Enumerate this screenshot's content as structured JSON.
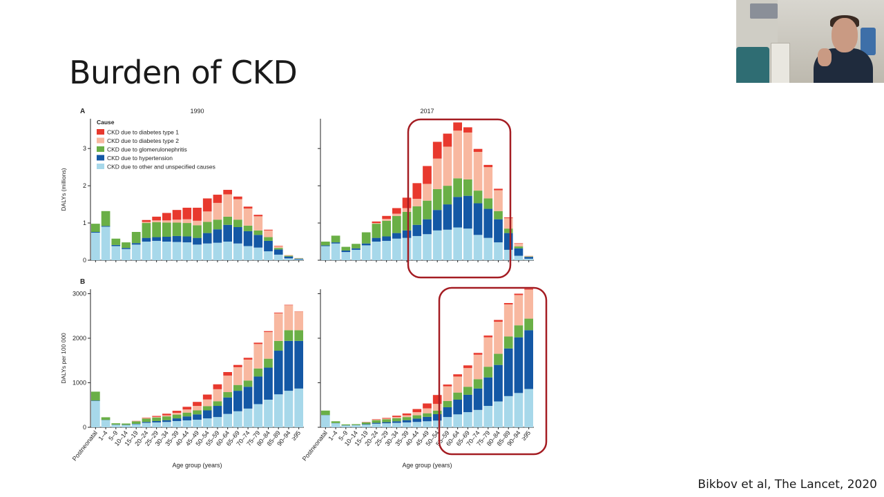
{
  "slide": {
    "title": "Burden of CKD",
    "citation": "Bikbov et al, The Lancet, 2020"
  },
  "colors": {
    "CKD due to diabetes type 1": "#e8392e",
    "CKD due to diabetes type 2": "#f8b8a0",
    "CKD due to glomerulonephritis": "#6aaf46",
    "CKD due to hypertension": "#1458a5",
    "CKD due to other and unspecified causes": "#a7d8ea",
    "highlight": "#a41c22"
  },
  "chart_data": [
    {
      "type": "bar",
      "stacked": true,
      "panel": "A",
      "title": "1990",
      "ylabel": "DALYs (millions)",
      "xlabel": "",
      "ylim": [
        0,
        3.8
      ],
      "yticks": [
        0,
        1,
        2,
        3
      ],
      "legend_title": "Cause",
      "legend_position": "top-left",
      "categories": [
        "Postneonatal",
        "1–4",
        "5–9",
        "10–14",
        "15–19",
        "20–24",
        "25–29",
        "30–34",
        "35–39",
        "40–44",
        "45–49",
        "50–54",
        "55–59",
        "60–64",
        "65–69",
        "70–74",
        "75–79",
        "80–84",
        "85–89",
        "90–94",
        "≥95"
      ],
      "series": [
        {
          "name": "CKD due to other and unspecified causes",
          "values": [
            0.74,
            0.9,
            0.38,
            0.3,
            0.42,
            0.5,
            0.52,
            0.5,
            0.49,
            0.48,
            0.42,
            0.45,
            0.47,
            0.5,
            0.45,
            0.38,
            0.34,
            0.24,
            0.15,
            0.05,
            0.02
          ]
        },
        {
          "name": "CKD due to hypertension",
          "values": [
            0.02,
            0.02,
            0.03,
            0.03,
            0.04,
            0.1,
            0.1,
            0.13,
            0.16,
            0.16,
            0.18,
            0.28,
            0.36,
            0.45,
            0.44,
            0.4,
            0.34,
            0.28,
            0.14,
            0.05,
            0.02
          ]
        },
        {
          "name": "CKD due to glomerulonephritis",
          "values": [
            0.22,
            0.4,
            0.17,
            0.15,
            0.3,
            0.4,
            0.4,
            0.38,
            0.36,
            0.36,
            0.34,
            0.3,
            0.26,
            0.22,
            0.2,
            0.15,
            0.12,
            0.1,
            0.04,
            0.02,
            0.01
          ]
        },
        {
          "name": "CKD due to diabetes type 2",
          "values": [
            0,
            0,
            0,
            0,
            0,
            0.03,
            0.05,
            0.06,
            0.08,
            0.1,
            0.12,
            0.28,
            0.45,
            0.6,
            0.55,
            0.46,
            0.38,
            0.18,
            0.05,
            0.02,
            0.01
          ]
        },
        {
          "name": "CKD due to diabetes type 1",
          "values": [
            0,
            0,
            0,
            0,
            0,
            0.05,
            0.1,
            0.2,
            0.26,
            0.31,
            0.35,
            0.35,
            0.22,
            0.12,
            0.07,
            0.05,
            0.04,
            0.02,
            0.01,
            0,
            0
          ]
        }
      ]
    },
    {
      "type": "bar",
      "stacked": true,
      "panel": "",
      "title": "2017",
      "ylabel": "",
      "xlabel": "",
      "ylim": [
        0,
        3.8
      ],
      "yticks": [
        0,
        1,
        2,
        3
      ],
      "categories": [
        "Postneonatal",
        "1–4",
        "5–9",
        "10–14",
        "15–19",
        "20–24",
        "25–29",
        "30–34",
        "35–39",
        "40–44",
        "45–49",
        "50–54",
        "55–59",
        "60–64",
        "65–69",
        "70–74",
        "75–79",
        "80–84",
        "85–89",
        "90–94",
        "≥95"
      ],
      "series": [
        {
          "name": "CKD due to other and unspecified causes",
          "values": [
            0.38,
            0.45,
            0.22,
            0.28,
            0.4,
            0.5,
            0.52,
            0.58,
            0.6,
            0.65,
            0.7,
            0.8,
            0.82,
            0.88,
            0.85,
            0.68,
            0.6,
            0.48,
            0.28,
            0.12,
            0.04
          ]
        },
        {
          "name": "CKD due to hypertension",
          "values": [
            0.02,
            0.03,
            0.04,
            0.04,
            0.05,
            0.1,
            0.12,
            0.15,
            0.2,
            0.3,
            0.4,
            0.55,
            0.68,
            0.82,
            0.88,
            0.85,
            0.78,
            0.62,
            0.45,
            0.2,
            0.05
          ]
        },
        {
          "name": "CKD due to glomerulonephritis",
          "values": [
            0.1,
            0.18,
            0.1,
            0.12,
            0.3,
            0.38,
            0.42,
            0.46,
            0.5,
            0.5,
            0.5,
            0.56,
            0.5,
            0.5,
            0.44,
            0.34,
            0.28,
            0.22,
            0.12,
            0.05,
            0.01
          ]
        },
        {
          "name": "CKD due to diabetes type 2",
          "values": [
            0,
            0,
            0,
            0,
            0,
            0.02,
            0.05,
            0.06,
            0.1,
            0.2,
            0.45,
            0.82,
            1.05,
            1.28,
            1.26,
            1.04,
            0.84,
            0.56,
            0.28,
            0.08,
            0.02
          ]
        },
        {
          "name": "CKD due to diabetes type 1",
          "values": [
            0,
            0,
            0,
            0,
            0,
            0.04,
            0.08,
            0.15,
            0.28,
            0.42,
            0.48,
            0.45,
            0.35,
            0.22,
            0.14,
            0.08,
            0.06,
            0.04,
            0.02,
            0.01,
            0
          ]
        }
      ]
    },
    {
      "type": "bar",
      "stacked": true,
      "panel": "B",
      "title": "",
      "ylabel": "DALYs per 100 000",
      "xlabel": "Age group (years)",
      "ylim": [
        0,
        3100
      ],
      "yticks": [
        0,
        1000,
        2000,
        3000
      ],
      "categories": [
        "Postneonatal",
        "1–4",
        "5–9",
        "10–14",
        "15–19",
        "20–24",
        "25–29",
        "30–34",
        "35–39",
        "40–44",
        "45–49",
        "50–54",
        "55–59",
        "60–64",
        "65–69",
        "70–74",
        "75–79",
        "80–84",
        "85–89",
        "90–94",
        "≥95"
      ],
      "series": [
        {
          "name": "CKD due to other and unspecified causes",
          "values": [
            590,
            160,
            55,
            50,
            70,
            100,
            110,
            120,
            140,
            155,
            170,
            200,
            230,
            300,
            360,
            420,
            520,
            620,
            740,
            820,
            870
          ]
        },
        {
          "name": "CKD due to hypertension",
          "values": [
            10,
            5,
            5,
            5,
            8,
            20,
            30,
            40,
            60,
            90,
            120,
            180,
            250,
            370,
            460,
            490,
            620,
            720,
            980,
            1120,
            1070
          ]
        },
        {
          "name": "CKD due to glomerulonephritis",
          "values": [
            200,
            60,
            30,
            30,
            55,
            75,
            80,
            85,
            85,
            85,
            90,
            95,
            105,
            120,
            130,
            140,
            180,
            200,
            220,
            240,
            240
          ]
        },
        {
          "name": "CKD due to diabetes type 2",
          "values": [
            0,
            0,
            0,
            0,
            5,
            10,
            15,
            25,
            40,
            70,
            100,
            150,
            270,
            370,
            400,
            470,
            550,
            600,
            620,
            560,
            420
          ]
        },
        {
          "name": "CKD due to diabetes type 1",
          "values": [
            0,
            0,
            0,
            0,
            5,
            10,
            20,
            35,
            45,
            60,
            90,
            110,
            110,
            80,
            50,
            40,
            30,
            20,
            15,
            10,
            5
          ]
        }
      ]
    },
    {
      "type": "bar",
      "stacked": true,
      "panel": "",
      "title": "",
      "ylabel": "",
      "xlabel": "Age group (years)",
      "ylim": [
        0,
        3100
      ],
      "yticks": [
        0,
        1000,
        2000,
        3000
      ],
      "categories": [
        "Postneonatal",
        "1–4",
        "5–9",
        "10–14",
        "15–19",
        "20–24",
        "25–29",
        "30–34",
        "35–39",
        "40–44",
        "45–49",
        "50–54",
        "55–59",
        "60–64",
        "65–69",
        "70–74",
        "75–79",
        "80–84",
        "85–89",
        "90–94",
        "≥95"
      ],
      "series": [
        {
          "name": "CKD due to other and unspecified causes",
          "values": [
            270,
            90,
            40,
            45,
            60,
            80,
            90,
            100,
            110,
            120,
            135,
            150,
            230,
            290,
            340,
            390,
            480,
            580,
            700,
            770,
            860
          ]
        },
        {
          "name": "CKD due to hypertension",
          "values": [
            5,
            5,
            5,
            5,
            10,
            20,
            25,
            35,
            50,
            75,
            100,
            145,
            220,
            330,
            390,
            480,
            640,
            820,
            1070,
            1250,
            1320
          ]
        },
        {
          "name": "CKD due to glomerulonephritis",
          "values": [
            100,
            40,
            20,
            20,
            40,
            60,
            65,
            70,
            70,
            75,
            80,
            80,
            140,
            160,
            180,
            210,
            240,
            250,
            270,
            270,
            260
          ]
        },
        {
          "name": "CKD due to diabetes type 2",
          "values": [
            0,
            0,
            0,
            0,
            5,
            10,
            15,
            25,
            40,
            70,
            110,
            150,
            330,
            360,
            420,
            550,
            660,
            720,
            720,
            680,
            650
          ]
        },
        {
          "name": "CKD due to diabetes type 1",
          "values": [
            0,
            0,
            0,
            0,
            5,
            10,
            15,
            30,
            40,
            70,
            110,
            200,
            40,
            50,
            60,
            40,
            40,
            40,
            30,
            30,
            20
          ]
        }
      ]
    }
  ]
}
